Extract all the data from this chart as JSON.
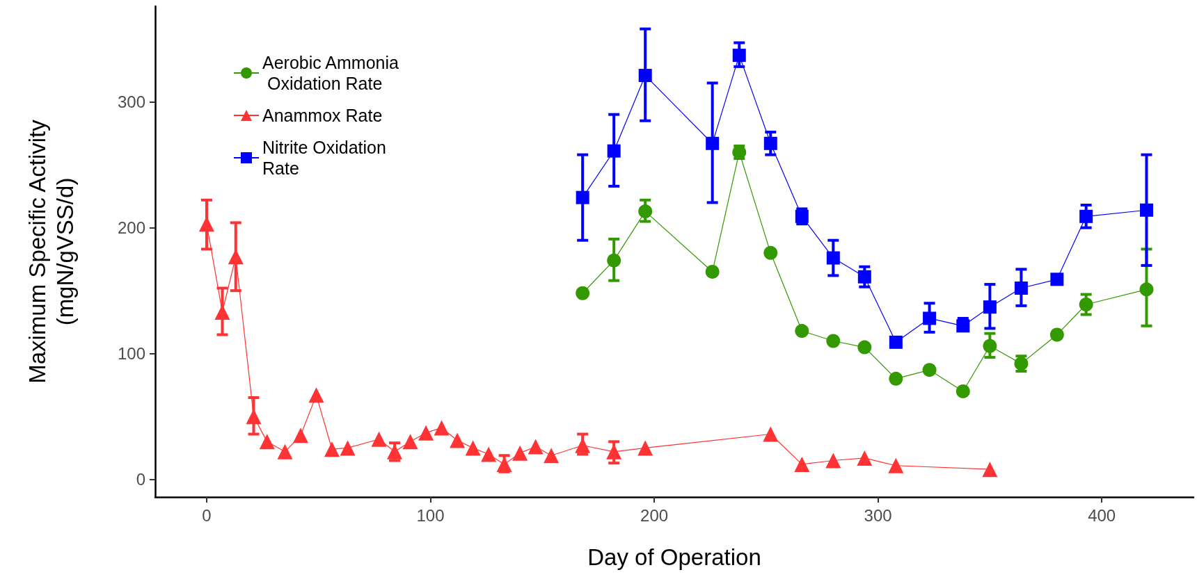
{
  "chart_data": {
    "type": "line",
    "xlabel": "Day of Operation",
    "ylabel": "Maximum Specific Activity\n(mgN/gVSS/d)",
    "xlim": [
      -23,
      441
    ],
    "xticks": [
      0,
      100,
      200,
      300,
      400
    ],
    "ylim": [
      -14,
      376
    ],
    "yticks": [
      0,
      100,
      200,
      300
    ],
    "grid": false,
    "legend": "top left",
    "series": [
      {
        "name": "Aerobic Ammonia Oxidation Rate",
        "color": "#339900",
        "marker": "circle",
        "x": [
          168,
          182,
          196,
          226,
          238,
          252,
          266,
          280,
          294,
          308,
          323,
          338,
          350,
          364,
          380,
          393,
          420
        ],
        "values": [
          148,
          174,
          213,
          165,
          260,
          180,
          118,
          110,
          105,
          80,
          87,
          70,
          106,
          92,
          115,
          139,
          151
        ],
        "errors": [
          null,
          [
            158,
            191
          ],
          [
            205,
            222
          ],
          null,
          [
            255,
            265
          ],
          null,
          null,
          null,
          null,
          null,
          null,
          null,
          [
            97,
            116
          ],
          [
            86,
            98
          ],
          null,
          [
            131,
            147
          ],
          [
            122,
            183
          ]
        ]
      },
      {
        "name": "Anammox Rate",
        "color": "#ff3333",
        "marker": "triangle",
        "x": [
          0,
          7,
          13,
          21,
          27,
          35,
          42,
          49,
          56,
          63,
          77,
          84,
          91,
          98,
          105,
          112,
          119,
          126,
          133,
          140,
          147,
          154,
          168,
          182,
          196,
          252,
          266,
          280,
          294,
          308,
          350
        ],
        "values": [
          203,
          133,
          177,
          50,
          30,
          22,
          35,
          67,
          24,
          25,
          32,
          22,
          30,
          37,
          41,
          31,
          25,
          20,
          12,
          21,
          26,
          19,
          27,
          22,
          25,
          36,
          12,
          15,
          17,
          11,
          8
        ],
        "errors": [
          [
            183,
            222
          ],
          [
            115,
            152
          ],
          [
            150,
            204
          ],
          [
            36,
            65
          ],
          null,
          null,
          null,
          null,
          null,
          null,
          null,
          [
            15,
            29
          ],
          null,
          null,
          null,
          null,
          null,
          null,
          [
            6,
            19
          ],
          null,
          null,
          null,
          [
            20,
            36
          ],
          [
            13,
            30
          ],
          null,
          null,
          null,
          null,
          null,
          null,
          null
        ]
      },
      {
        "name": "Nitrite Oxidation Rate",
        "color": "#0000ff",
        "marker": "square",
        "x": [
          168,
          182,
          196,
          226,
          238,
          252,
          266,
          280,
          294,
          308,
          323,
          338,
          350,
          364,
          380,
          393,
          420
        ],
        "values": [
          224,
          261,
          321,
          267,
          337,
          267,
          209,
          176,
          161,
          109,
          128,
          122,
          137,
          152,
          159,
          209,
          214
        ],
        "errors": [
          [
            190,
            258
          ],
          [
            233,
            290
          ],
          [
            285,
            358
          ],
          [
            220,
            315
          ],
          [
            328,
            347
          ],
          [
            258,
            276
          ],
          [
            203,
            215
          ],
          [
            162,
            190
          ],
          [
            153,
            169
          ],
          null,
          [
            117,
            140
          ],
          [
            118,
            128
          ],
          [
            120,
            155
          ],
          [
            138,
            167
          ],
          null,
          [
            200,
            218
          ],
          [
            170,
            258
          ]
        ]
      }
    ]
  }
}
